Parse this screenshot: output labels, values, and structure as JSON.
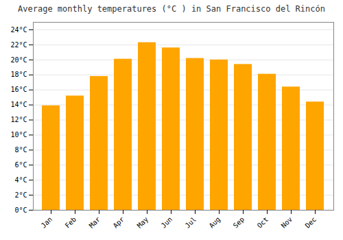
{
  "chart_data": {
    "type": "bar",
    "title": "Average monthly temperatures (°C ) in San Francisco del Rincón",
    "categories": [
      "Jan",
      "Feb",
      "Mar",
      "Apr",
      "May",
      "Jun",
      "Jul",
      "Aug",
      "Sep",
      "Oct",
      "Nov",
      "Dec"
    ],
    "values": [
      13.9,
      15.2,
      17.8,
      20.1,
      22.3,
      21.6,
      20.2,
      20.0,
      19.4,
      18.1,
      16.4,
      14.4
    ],
    "color": "#FFA500",
    "ylim": [
      0,
      25
    ],
    "yticks": [
      {
        "value": 0,
        "label": "0°C"
      },
      {
        "value": 2,
        "label": "2°C"
      },
      {
        "value": 4,
        "label": "4°C"
      },
      {
        "value": 6,
        "label": "6°C"
      },
      {
        "value": 8,
        "label": "8°C"
      },
      {
        "value": 10,
        "label": "10°C"
      },
      {
        "value": 12,
        "label": "12°C"
      },
      {
        "value": 14,
        "label": "14°C"
      },
      {
        "value": 16,
        "label": "16°C"
      },
      {
        "value": 18,
        "label": "18°C"
      },
      {
        "value": 20,
        "label": "20°C"
      },
      {
        "value": 22,
        "label": "22°C"
      },
      {
        "value": 24,
        "label": "24°C"
      }
    ],
    "grid": true
  }
}
